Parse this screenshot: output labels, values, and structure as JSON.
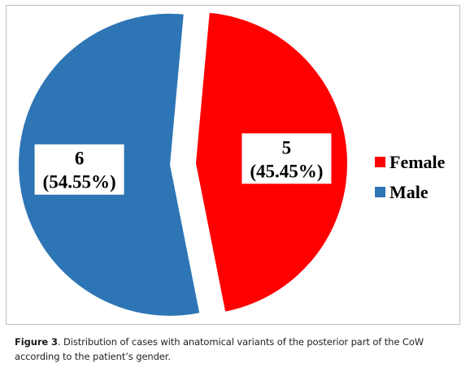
{
  "chart_data": {
    "type": "pie",
    "categories": [
      "Female",
      "Male"
    ],
    "values": [
      5,
      6
    ],
    "percent_labels": [
      "(45.45%)",
      "(54.55%)"
    ],
    "count_labels": [
      "5",
      "6"
    ],
    "colors": [
      "#ff0000",
      "#2e75b6"
    ],
    "legend": "right",
    "exploded": true
  },
  "caption": {
    "figure_ref": "Figure 3",
    "text": ". Distribution of cases with anatomical variants of the posterior part of the CoW according to the patient’s gender."
  }
}
